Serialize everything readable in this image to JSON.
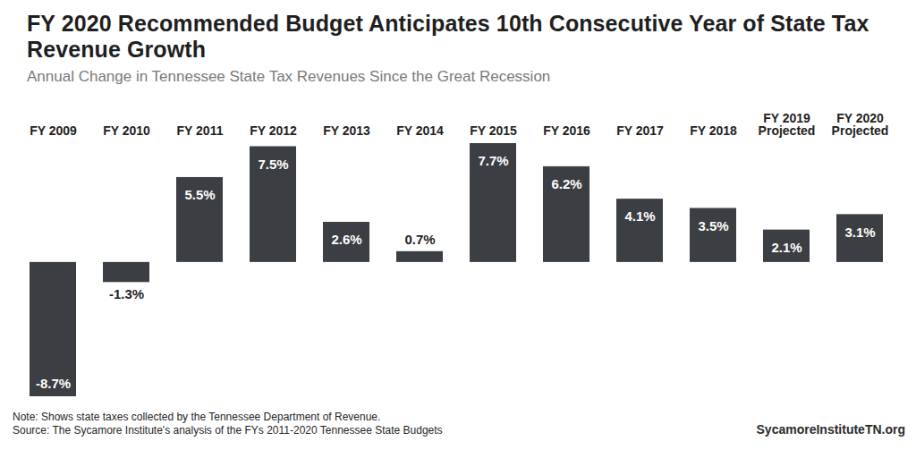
{
  "chart_data": {
    "type": "bar",
    "title": "FY 2020 Recommended Budget Anticipates 10th Consecutive Year of State Tax Revenue Growth",
    "subtitle": "Annual Change in Tennessee State Tax Revenues Since the Great Recession",
    "categories": [
      "FY 2009",
      "FY 2010",
      "FY 2011",
      "FY 2012",
      "FY 2013",
      "FY 2014",
      "FY 2015",
      "FY 2016",
      "FY 2017",
      "FY 2018",
      "FY 2019 Projected",
      "FY 2020 Projected"
    ],
    "values": [
      -8.7,
      -1.3,
      5.5,
      7.5,
      2.6,
      0.7,
      7.7,
      6.2,
      4.1,
      3.5,
      2.1,
      3.1
    ],
    "value_labels": [
      "-8.7%",
      "-1.3%",
      "5.5%",
      "7.5%",
      "2.6%",
      "0.7%",
      "7.7%",
      "6.2%",
      "4.1%",
      "3.5%",
      "2.1%",
      "3.1%"
    ],
    "color": "#3b3e42",
    "ylim": [
      -8.7,
      7.7
    ],
    "yticks": [],
    "grid": false,
    "data_labels": true,
    "tick_labels": "x",
    "note": "Note: Shows state taxes collected by the Tennessee Department of Revenue.",
    "source": "Source: The Sycamore Institute's analysis of the FYs 2011-2020 Tennessee State Budgets",
    "annotations": [
      "SycamoreInstituteTN.org"
    ]
  }
}
